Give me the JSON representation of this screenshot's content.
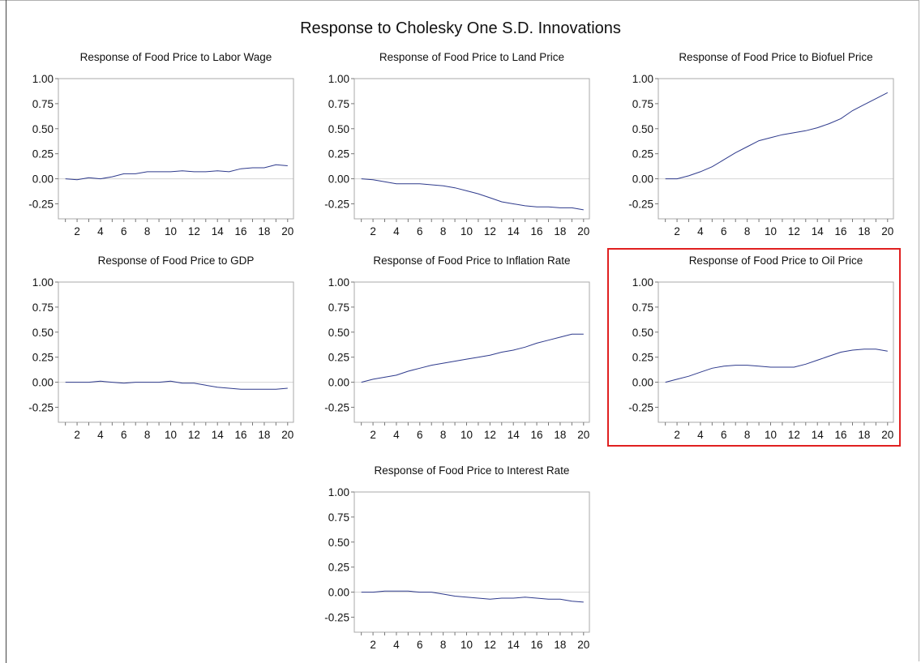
{
  "title": "Response to Cholesky One S.D. Innovations",
  "colors": {
    "series": "#2e3a8c",
    "highlight": "#e02020",
    "axis": "#a9a9a9"
  },
  "chart_data": [
    {
      "type": "line",
      "title": "Response of Food Price to Labor Wage",
      "x": [
        1,
        2,
        3,
        4,
        5,
        6,
        7,
        8,
        9,
        10,
        11,
        12,
        13,
        14,
        15,
        16,
        17,
        18,
        19,
        20
      ],
      "y": [
        0.0,
        -0.01,
        0.01,
        0.0,
        0.02,
        0.05,
        0.05,
        0.07,
        0.07,
        0.07,
        0.08,
        0.07,
        0.07,
        0.08,
        0.07,
        0.1,
        0.11,
        0.11,
        0.14,
        0.13
      ],
      "xticks": [
        "2",
        "4",
        "6",
        "8",
        "10",
        "12",
        "14",
        "16",
        "18",
        "20"
      ],
      "yticks": [
        "1.00",
        "0.75",
        "0.50",
        "0.25",
        "0.00",
        "-0.25"
      ],
      "ylim": [
        -0.4,
        1.0
      ],
      "highlighted": false
    },
    {
      "type": "line",
      "title": "Response of Food Price to Land Price",
      "x": [
        1,
        2,
        3,
        4,
        5,
        6,
        7,
        8,
        9,
        10,
        11,
        12,
        13,
        14,
        15,
        16,
        17,
        18,
        19,
        20
      ],
      "y": [
        0.0,
        -0.01,
        -0.03,
        -0.05,
        -0.05,
        -0.05,
        -0.06,
        -0.07,
        -0.09,
        -0.12,
        -0.15,
        -0.19,
        -0.23,
        -0.25,
        -0.27,
        -0.28,
        -0.28,
        -0.29,
        -0.29,
        -0.31
      ],
      "xticks": [
        "2",
        "4",
        "6",
        "8",
        "10",
        "12",
        "14",
        "16",
        "18",
        "20"
      ],
      "yticks": [
        "1.00",
        "0.75",
        "0.50",
        "0.25",
        "0.00",
        "-0.25"
      ],
      "ylim": [
        -0.4,
        1.0
      ],
      "highlighted": false
    },
    {
      "type": "line",
      "title": "Response of Food Price to Biofuel Price",
      "x": [
        1,
        2,
        3,
        4,
        5,
        6,
        7,
        8,
        9,
        10,
        11,
        12,
        13,
        14,
        15,
        16,
        17,
        18,
        19,
        20
      ],
      "y": [
        0.0,
        0.0,
        0.03,
        0.07,
        0.12,
        0.19,
        0.26,
        0.32,
        0.38,
        0.41,
        0.44,
        0.46,
        0.48,
        0.51,
        0.55,
        0.6,
        0.68,
        0.74,
        0.8,
        0.86
      ],
      "xticks": [
        "2",
        "4",
        "6",
        "8",
        "10",
        "12",
        "14",
        "16",
        "18",
        "20"
      ],
      "yticks": [
        "1.00",
        "0.75",
        "0.50",
        "0.25",
        "0.00",
        "-0.25"
      ],
      "ylim": [
        -0.4,
        1.0
      ],
      "highlighted": false
    },
    {
      "type": "line",
      "title": "Response of Food Price to GDP",
      "x": [
        1,
        2,
        3,
        4,
        5,
        6,
        7,
        8,
        9,
        10,
        11,
        12,
        13,
        14,
        15,
        16,
        17,
        18,
        19,
        20
      ],
      "y": [
        0.0,
        0.0,
        0.0,
        0.01,
        0.0,
        -0.01,
        0.0,
        0.0,
        0.0,
        0.01,
        -0.01,
        -0.01,
        -0.03,
        -0.05,
        -0.06,
        -0.07,
        -0.07,
        -0.07,
        -0.07,
        -0.06
      ],
      "xticks": [
        "2",
        "4",
        "6",
        "8",
        "10",
        "12",
        "14",
        "16",
        "18",
        "20"
      ],
      "yticks": [
        "1.00",
        "0.75",
        "0.50",
        "0.25",
        "0.00",
        "-0.25"
      ],
      "ylim": [
        -0.4,
        1.0
      ],
      "highlighted": false
    },
    {
      "type": "line",
      "title": "Response of Food Price to Inflation Rate",
      "x": [
        1,
        2,
        3,
        4,
        5,
        6,
        7,
        8,
        9,
        10,
        11,
        12,
        13,
        14,
        15,
        16,
        17,
        18,
        19,
        20
      ],
      "y": [
        0.0,
        0.03,
        0.05,
        0.07,
        0.11,
        0.14,
        0.17,
        0.19,
        0.21,
        0.23,
        0.25,
        0.27,
        0.3,
        0.32,
        0.35,
        0.39,
        0.42,
        0.45,
        0.48,
        0.48
      ],
      "xticks": [
        "2",
        "4",
        "6",
        "8",
        "10",
        "12",
        "14",
        "16",
        "18",
        "20"
      ],
      "yticks": [
        "1.00",
        "0.75",
        "0.50",
        "0.25",
        "0.00",
        "-0.25"
      ],
      "ylim": [
        -0.4,
        1.0
      ],
      "highlighted": false
    },
    {
      "type": "line",
      "title": "Response of Food Price to Oil Price",
      "x": [
        1,
        2,
        3,
        4,
        5,
        6,
        7,
        8,
        9,
        10,
        11,
        12,
        13,
        14,
        15,
        16,
        17,
        18,
        19,
        20
      ],
      "y": [
        0.0,
        0.03,
        0.06,
        0.1,
        0.14,
        0.16,
        0.17,
        0.17,
        0.16,
        0.15,
        0.15,
        0.15,
        0.18,
        0.22,
        0.26,
        0.3,
        0.32,
        0.33,
        0.33,
        0.31
      ],
      "xticks": [
        "2",
        "4",
        "6",
        "8",
        "10",
        "12",
        "14",
        "16",
        "18",
        "20"
      ],
      "yticks": [
        "1.00",
        "0.75",
        "0.50",
        "0.25",
        "0.00",
        "-0.25"
      ],
      "ylim": [
        -0.4,
        1.0
      ],
      "highlighted": true
    },
    {
      "type": "line",
      "title": "Response of Food Price to Interest Rate",
      "x": [
        1,
        2,
        3,
        4,
        5,
        6,
        7,
        8,
        9,
        10,
        11,
        12,
        13,
        14,
        15,
        16,
        17,
        18,
        19,
        20
      ],
      "y": [
        0.0,
        0.0,
        0.01,
        0.01,
        0.01,
        0.0,
        0.0,
        -0.02,
        -0.04,
        -0.05,
        -0.06,
        -0.07,
        -0.06,
        -0.06,
        -0.05,
        -0.06,
        -0.07,
        -0.07,
        -0.09,
        -0.1
      ],
      "xticks": [
        "2",
        "4",
        "6",
        "8",
        "10",
        "12",
        "14",
        "16",
        "18",
        "20"
      ],
      "yticks": [
        "1.00",
        "0.75",
        "0.50",
        "0.25",
        "0.00",
        "-0.25"
      ],
      "ylim": [
        -0.4,
        1.0
      ],
      "highlighted": false
    }
  ]
}
